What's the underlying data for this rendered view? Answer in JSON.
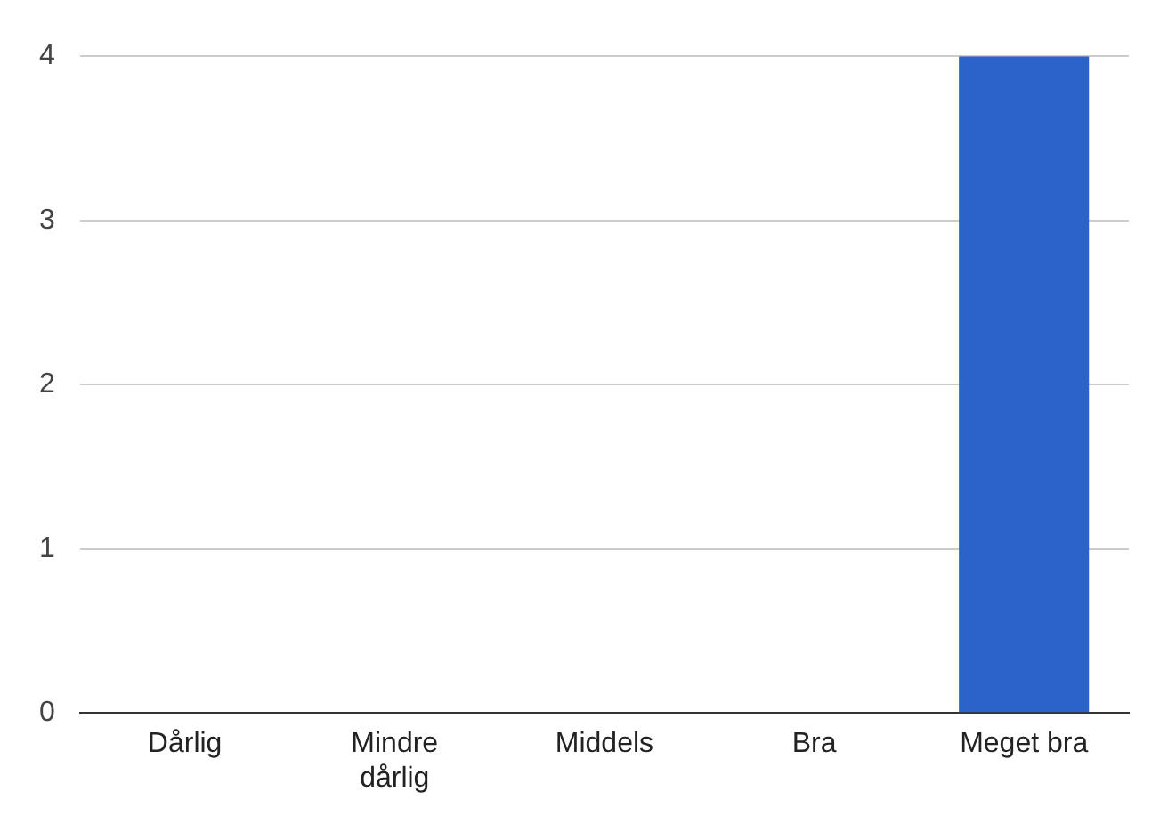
{
  "chart_data": {
    "type": "bar",
    "categories": [
      "Dårlig",
      "Mindre dårlig",
      "Middels",
      "Bra",
      "Meget bra"
    ],
    "values": [
      0,
      0,
      0,
      0,
      4
    ],
    "color": "#2b63cb",
    "ylim": [
      0,
      4
    ],
    "yticks": [
      0,
      1,
      2,
      3,
      4
    ],
    "grid": "y",
    "legend": false
  }
}
